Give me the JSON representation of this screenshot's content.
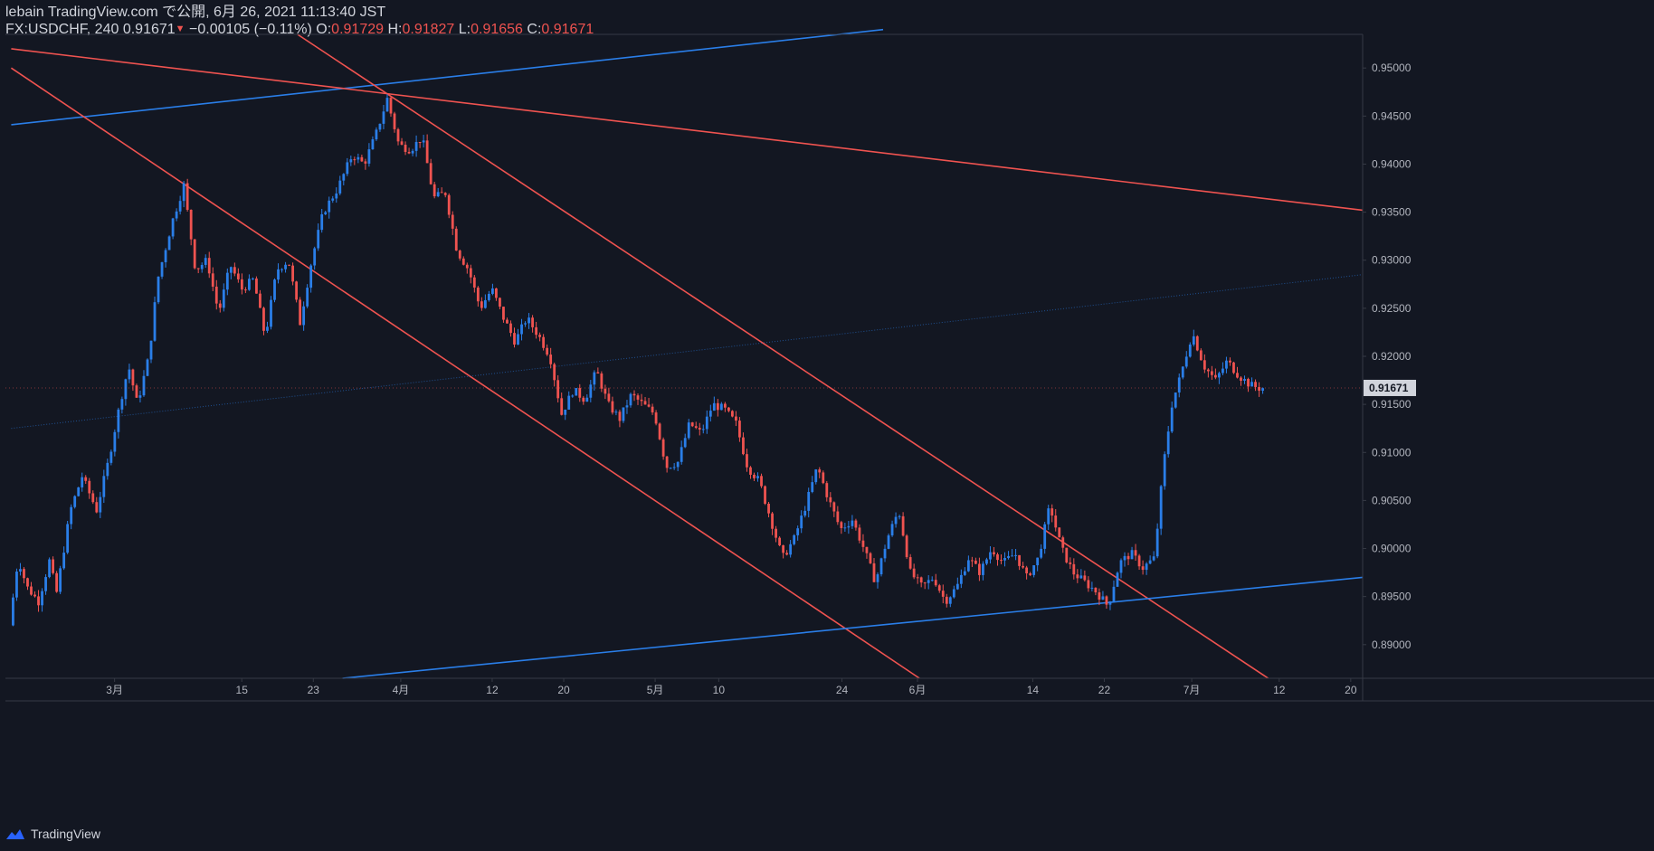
{
  "header": {
    "line1": "lebain TradingView.com で公開, 6月 26, 2021 11:13:40 JST",
    "symbol": "FX:USDCHF, 240",
    "last": "0.91671",
    "change_arrow": "▼",
    "change": "−0.00105 (−0.11%)",
    "o_label": "O:",
    "o_value": "0.91729",
    "h_label": "H:",
    "h_value": "0.91827",
    "l_label": "L:",
    "l_value": "0.91656",
    "c_label": "C:",
    "c_value": "0.91671"
  },
  "footer": {
    "brand": "TradingView"
  },
  "colors": {
    "background": "#131722",
    "up": "#2a7ee8",
    "down": "#ef5350",
    "axis_text": "#b2b5be",
    "grid_border": "#363a45"
  },
  "chart_data": {
    "type": "candlestick",
    "title": "FX:USDCHF, 240",
    "x_ticks": [
      "3月",
      "15",
      "23",
      "4月",
      "12",
      "20",
      "5月",
      "10",
      "24",
      "6月",
      "14",
      "22",
      "7月",
      "12",
      "20"
    ],
    "y_ticks": [
      "0.95000",
      "0.94500",
      "0.94000",
      "0.93500",
      "0.93000",
      "0.92500",
      "0.92000",
      "0.91500",
      "0.91000",
      "0.90500",
      "0.90000",
      "0.89500",
      "0.89000"
    ],
    "ylim": [
      0.8865,
      0.9535
    ],
    "last_price": "0.91671",
    "price_path": [
      {
        "t": 0.0,
        "p": 0.892
      },
      {
        "t": 0.6,
        "p": 0.899
      },
      {
        "t": 1.2,
        "p": 0.896
      },
      {
        "t": 2.0,
        "p": 0.8945
      },
      {
        "t": 2.8,
        "p": 0.899
      },
      {
        "t": 3.2,
        "p": 0.895
      },
      {
        "t": 4.2,
        "p": 0.904
      },
      {
        "t": 5.0,
        "p": 0.9075
      },
      {
        "t": 6.0,
        "p": 0.904
      },
      {
        "t": 6.8,
        "p": 0.909
      },
      {
        "t": 7.6,
        "p": 0.915
      },
      {
        "t": 8.2,
        "p": 0.919
      },
      {
        "t": 8.8,
        "p": 0.915
      },
      {
        "t": 9.6,
        "p": 0.92
      },
      {
        "t": 10.2,
        "p": 0.928
      },
      {
        "t": 11.2,
        "p": 0.934
      },
      {
        "t": 12.0,
        "p": 0.9378
      },
      {
        "t": 12.8,
        "p": 0.929
      },
      {
        "t": 13.6,
        "p": 0.93
      },
      {
        "t": 14.4,
        "p": 0.9245
      },
      {
        "t": 15.2,
        "p": 0.9295
      },
      {
        "t": 16.0,
        "p": 0.927
      },
      {
        "t": 16.8,
        "p": 0.928
      },
      {
        "t": 17.6,
        "p": 0.922
      },
      {
        "t": 18.4,
        "p": 0.929
      },
      {
        "t": 19.2,
        "p": 0.93
      },
      {
        "t": 20.0,
        "p": 0.9235
      },
      {
        "t": 20.8,
        "p": 0.93
      },
      {
        "t": 21.6,
        "p": 0.935
      },
      {
        "t": 22.6,
        "p": 0.9375
      },
      {
        "t": 23.6,
        "p": 0.941
      },
      {
        "t": 24.4,
        "p": 0.94
      },
      {
        "t": 25.2,
        "p": 0.943
      },
      {
        "t": 26.0,
        "p": 0.9468
      },
      {
        "t": 26.8,
        "p": 0.942
      },
      {
        "t": 27.6,
        "p": 0.9415
      },
      {
        "t": 28.4,
        "p": 0.9428
      },
      {
        "t": 29.2,
        "p": 0.9365
      },
      {
        "t": 30.0,
        "p": 0.937
      },
      {
        "t": 30.8,
        "p": 0.931
      },
      {
        "t": 31.6,
        "p": 0.929
      },
      {
        "t": 32.4,
        "p": 0.925
      },
      {
        "t": 33.2,
        "p": 0.927
      },
      {
        "t": 34.0,
        "p": 0.924
      },
      {
        "t": 34.8,
        "p": 0.9215
      },
      {
        "t": 35.6,
        "p": 0.924
      },
      {
        "t": 36.4,
        "p": 0.9222
      },
      {
        "t": 37.2,
        "p": 0.92
      },
      {
        "t": 38.0,
        "p": 0.914
      },
      {
        "t": 38.8,
        "p": 0.9165
      },
      {
        "t": 39.6,
        "p": 0.9155
      },
      {
        "t": 40.4,
        "p": 0.9185
      },
      {
        "t": 41.2,
        "p": 0.915
      },
      {
        "t": 42.0,
        "p": 0.9135
      },
      {
        "t": 42.8,
        "p": 0.916
      },
      {
        "t": 43.6,
        "p": 0.915
      },
      {
        "t": 44.4,
        "p": 0.914
      },
      {
        "t": 45.2,
        "p": 0.9085
      },
      {
        "t": 46.0,
        "p": 0.909
      },
      {
        "t": 46.8,
        "p": 0.913
      },
      {
        "t": 47.6,
        "p": 0.912
      },
      {
        "t": 48.4,
        "p": 0.915
      },
      {
        "t": 49.2,
        "p": 0.9145
      },
      {
        "t": 50.0,
        "p": 0.913
      },
      {
        "t": 50.8,
        "p": 0.9085
      },
      {
        "t": 51.6,
        "p": 0.907
      },
      {
        "t": 52.4,
        "p": 0.903
      },
      {
        "t": 53.2,
        "p": 0.899
      },
      {
        "t": 54.0,
        "p": 0.901
      },
      {
        "t": 54.8,
        "p": 0.9045
      },
      {
        "t": 55.6,
        "p": 0.9085
      },
      {
        "t": 56.4,
        "p": 0.905
      },
      {
        "t": 57.2,
        "p": 0.902
      },
      {
        "t": 58.0,
        "p": 0.903
      },
      {
        "t": 58.8,
        "p": 0.9
      },
      {
        "t": 59.6,
        "p": 0.8965
      },
      {
        "t": 60.4,
        "p": 0.901
      },
      {
        "t": 61.2,
        "p": 0.904
      },
      {
        "t": 62.0,
        "p": 0.8975
      },
      {
        "t": 62.8,
        "p": 0.896
      },
      {
        "t": 63.6,
        "p": 0.897
      },
      {
        "t": 64.4,
        "p": 0.8945
      },
      {
        "t": 65.2,
        "p": 0.896
      },
      {
        "t": 66.0,
        "p": 0.899
      },
      {
        "t": 66.8,
        "p": 0.8975
      },
      {
        "t": 67.6,
        "p": 0.9
      },
      {
        "t": 68.4,
        "p": 0.8985
      },
      {
        "t": 69.2,
        "p": 0.8995
      },
      {
        "t": 70.0,
        "p": 0.897
      },
      {
        "t": 70.8,
        "p": 0.899
      },
      {
        "t": 71.6,
        "p": 0.9045
      },
      {
        "t": 72.4,
        "p": 0.9
      },
      {
        "t": 73.2,
        "p": 0.8975
      },
      {
        "t": 74.0,
        "p": 0.8965
      },
      {
        "t": 74.8,
        "p": 0.8955
      },
      {
        "t": 75.6,
        "p": 0.894
      },
      {
        "t": 76.4,
        "p": 0.8985
      },
      {
        "t": 77.2,
        "p": 0.8995
      },
      {
        "t": 78.0,
        "p": 0.898
      },
      {
        "t": 78.8,
        "p": 0.899
      },
      {
        "t": 79.4,
        "p": 0.9085
      },
      {
        "t": 80.0,
        "p": 0.915
      },
      {
        "t": 80.6,
        "p": 0.918
      },
      {
        "t": 81.4,
        "p": 0.9225
      },
      {
        "t": 82.2,
        "p": 0.919
      },
      {
        "t": 83.0,
        "p": 0.9175
      },
      {
        "t": 83.8,
        "p": 0.9195
      },
      {
        "t": 84.6,
        "p": 0.918
      },
      {
        "t": 85.4,
        "p": 0.917
      },
      {
        "t": 86.0,
        "p": 0.9167
      }
    ],
    "trendlines": [
      {
        "color": "#2a7ee8",
        "from": [
          0,
          0.9441
        ],
        "to": [
          60.0,
          0.954
        ]
      },
      {
        "color": "#ef5350",
        "from": [
          0,
          0.952
        ],
        "to": [
          93.0,
          0.9352
        ]
      },
      {
        "color": "#ef5350",
        "from": [
          0,
          0.95
        ],
        "to": [
          62.5,
          0.8865
        ]
      },
      {
        "color": "#ef5350",
        "from": [
          19.7,
          0.9535
        ],
        "to": [
          86.5,
          0.8865
        ]
      },
      {
        "color": "#2a7ee8",
        "from": [
          22.8,
          0.8865
        ],
        "to": [
          93.0,
          0.897
        ]
      },
      {
        "color": "#2a7ee8",
        "from": [
          0,
          0.9125
        ],
        "to": [
          93.0,
          0.9285
        ],
        "dotted": true
      }
    ],
    "t_range": [
      -0.4,
      93.0
    ],
    "legend": "none"
  }
}
